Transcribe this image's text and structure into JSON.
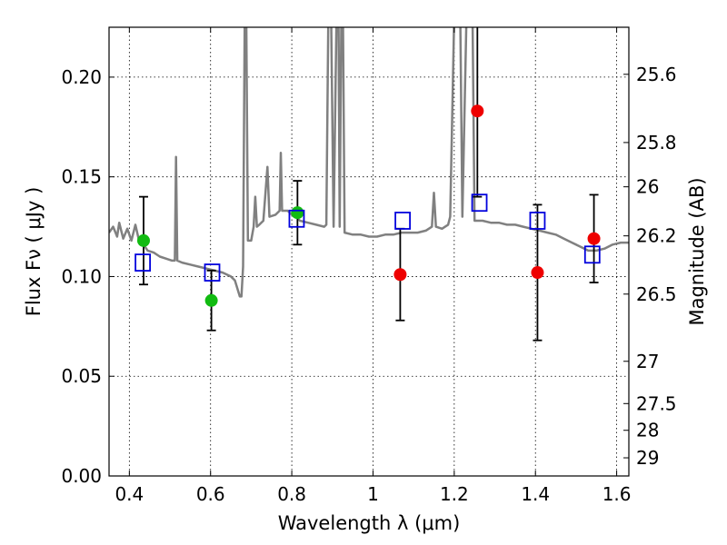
{
  "chart_data": {
    "type": "scatter",
    "title": "",
    "xlabel": "Wavelength  λ (μm)",
    "ylabel": "Flux  Fν  ( μJy )",
    "ylabel_right": "Magnitude (AB)",
    "xlim": [
      0.35,
      1.63
    ],
    "ylim": [
      0.0,
      0.225
    ],
    "grid": true,
    "x_ticks": [
      {
        "value": 0.4,
        "label": "0.4"
      },
      {
        "value": 0.6,
        "label": "0.6"
      },
      {
        "value": 0.8,
        "label": "0.8"
      },
      {
        "value": 1.0,
        "label": "1"
      },
      {
        "value": 1.2,
        "label": "1.2"
      },
      {
        "value": 1.4,
        "label": "1.4"
      },
      {
        "value": 1.6,
        "label": "1.6"
      }
    ],
    "y_ticks": [
      {
        "value": 0.0,
        "label": "0.00"
      },
      {
        "value": 0.05,
        "label": "0.05"
      },
      {
        "value": 0.1,
        "label": "0.10"
      },
      {
        "value": 0.15,
        "label": "0.15"
      },
      {
        "value": 0.2,
        "label": "0.20"
      }
    ],
    "right_ticks": [
      {
        "flux": 0.2014,
        "label": "25.6"
      },
      {
        "flux": 0.1672,
        "label": "25.8"
      },
      {
        "flux": 0.145,
        "label": "26"
      },
      {
        "flux": 0.1204,
        "label": "26.2"
      },
      {
        "flux": 0.0912,
        "label": "26.5"
      },
      {
        "flux": 0.0575,
        "label": "27"
      },
      {
        "flux": 0.0363,
        "label": "27.5"
      },
      {
        "flux": 0.0229,
        "label": "28"
      },
      {
        "flux": 0.0091,
        "label": "29"
      }
    ],
    "colors": {
      "model": "#808080",
      "green_points": "#11bb11",
      "red_points": "#ee0000",
      "model_squares": "#0000dd",
      "errorbars": "#000000"
    },
    "series": [
      {
        "kind": "line",
        "color": "#808080",
        "points": [
          [
            0.35,
            0.122
          ],
          [
            0.36,
            0.125
          ],
          [
            0.37,
            0.12
          ],
          [
            0.375,
            0.127
          ],
          [
            0.385,
            0.119
          ],
          [
            0.395,
            0.124
          ],
          [
            0.405,
            0.118
          ],
          [
            0.415,
            0.126
          ],
          [
            0.425,
            0.117
          ],
          [
            0.435,
            0.116
          ],
          [
            0.445,
            0.113
          ],
          [
            0.46,
            0.112
          ],
          [
            0.475,
            0.11
          ],
          [
            0.49,
            0.109
          ],
          [
            0.505,
            0.108
          ],
          [
            0.512,
            0.108
          ],
          [
            0.515,
            0.16
          ],
          [
            0.518,
            0.108
          ],
          [
            0.53,
            0.107
          ],
          [
            0.55,
            0.106
          ],
          [
            0.57,
            0.105
          ],
          [
            0.59,
            0.104
          ],
          [
            0.61,
            0.103
          ],
          [
            0.63,
            0.102
          ],
          [
            0.65,
            0.1
          ],
          [
            0.66,
            0.098
          ],
          [
            0.672,
            0.09
          ],
          [
            0.676,
            0.09
          ],
          [
            0.68,
            0.105
          ],
          [
            0.684,
            0.23
          ],
          [
            0.688,
            0.23
          ],
          [
            0.692,
            0.118
          ],
          [
            0.7,
            0.118
          ],
          [
            0.706,
            0.125
          ],
          [
            0.71,
            0.14
          ],
          [
            0.714,
            0.125
          ],
          [
            0.72,
            0.126
          ],
          [
            0.73,
            0.128
          ],
          [
            0.74,
            0.155
          ],
          [
            0.745,
            0.13
          ],
          [
            0.76,
            0.131
          ],
          [
            0.77,
            0.133
          ],
          [
            0.773,
            0.162
          ],
          [
            0.776,
            0.133
          ],
          [
            0.79,
            0.133
          ],
          [
            0.8,
            0.131
          ],
          [
            0.81,
            0.13
          ],
          [
            0.82,
            0.128
          ],
          [
            0.84,
            0.127
          ],
          [
            0.86,
            0.126
          ],
          [
            0.88,
            0.125
          ],
          [
            0.885,
            0.126
          ],
          [
            0.89,
            0.23
          ],
          [
            0.897,
            0.23
          ],
          [
            0.903,
            0.125
          ],
          [
            0.91,
            0.23
          ],
          [
            0.915,
            0.23
          ],
          [
            0.918,
            0.125
          ],
          [
            0.922,
            0.23
          ],
          [
            0.926,
            0.23
          ],
          [
            0.93,
            0.122
          ],
          [
            0.95,
            0.121
          ],
          [
            0.97,
            0.121
          ],
          [
            0.99,
            0.12
          ],
          [
            1.01,
            0.12
          ],
          [
            1.03,
            0.121
          ],
          [
            1.05,
            0.121
          ],
          [
            1.07,
            0.122
          ],
          [
            1.09,
            0.122
          ],
          [
            1.11,
            0.122
          ],
          [
            1.13,
            0.123
          ],
          [
            1.145,
            0.125
          ],
          [
            1.15,
            0.142
          ],
          [
            1.155,
            0.125
          ],
          [
            1.17,
            0.124
          ],
          [
            1.185,
            0.126
          ],
          [
            1.19,
            0.13
          ],
          [
            1.2,
            0.23
          ],
          [
            1.215,
            0.23
          ],
          [
            1.22,
            0.13
          ],
          [
            1.23,
            0.23
          ],
          [
            1.245,
            0.23
          ],
          [
            1.25,
            0.128
          ],
          [
            1.27,
            0.128
          ],
          [
            1.29,
            0.127
          ],
          [
            1.31,
            0.127
          ],
          [
            1.33,
            0.126
          ],
          [
            1.35,
            0.126
          ],
          [
            1.37,
            0.125
          ],
          [
            1.39,
            0.124
          ],
          [
            1.41,
            0.123
          ],
          [
            1.43,
            0.122
          ],
          [
            1.45,
            0.121
          ],
          [
            1.47,
            0.119
          ],
          [
            1.49,
            0.117
          ],
          [
            1.51,
            0.115
          ],
          [
            1.53,
            0.113
          ],
          [
            1.55,
            0.113
          ],
          [
            1.57,
            0.114
          ],
          [
            1.59,
            0.116
          ],
          [
            1.61,
            0.117
          ],
          [
            1.63,
            0.117
          ]
        ]
      },
      {
        "kind": "points",
        "marker": "circle",
        "color": "#11bb11",
        "points": [
          {
            "x": 0.435,
            "y": 0.118,
            "err": 0.022
          },
          {
            "x": 0.602,
            "y": 0.088,
            "err": 0.015
          },
          {
            "x": 0.814,
            "y": 0.132,
            "err": 0.016
          }
        ]
      },
      {
        "kind": "points",
        "marker": "circle",
        "color": "#ee0000",
        "points": [
          {
            "x": 1.067,
            "y": 0.101,
            "err": 0.023
          },
          {
            "x": 1.257,
            "y": 0.183,
            "err": 0.043
          },
          {
            "x": 1.405,
            "y": 0.102,
            "err": 0.034
          },
          {
            "x": 1.544,
            "y": 0.119,
            "err": 0.022
          }
        ]
      },
      {
        "kind": "points",
        "marker": "square",
        "color": "#0000dd",
        "points": [
          {
            "x": 0.433,
            "y": 0.107
          },
          {
            "x": 0.604,
            "y": 0.102
          },
          {
            "x": 0.812,
            "y": 0.129
          },
          {
            "x": 1.073,
            "y": 0.128
          },
          {
            "x": 1.262,
            "y": 0.137
          },
          {
            "x": 1.405,
            "y": 0.128
          },
          {
            "x": 1.54,
            "y": 0.111
          }
        ]
      }
    ]
  }
}
